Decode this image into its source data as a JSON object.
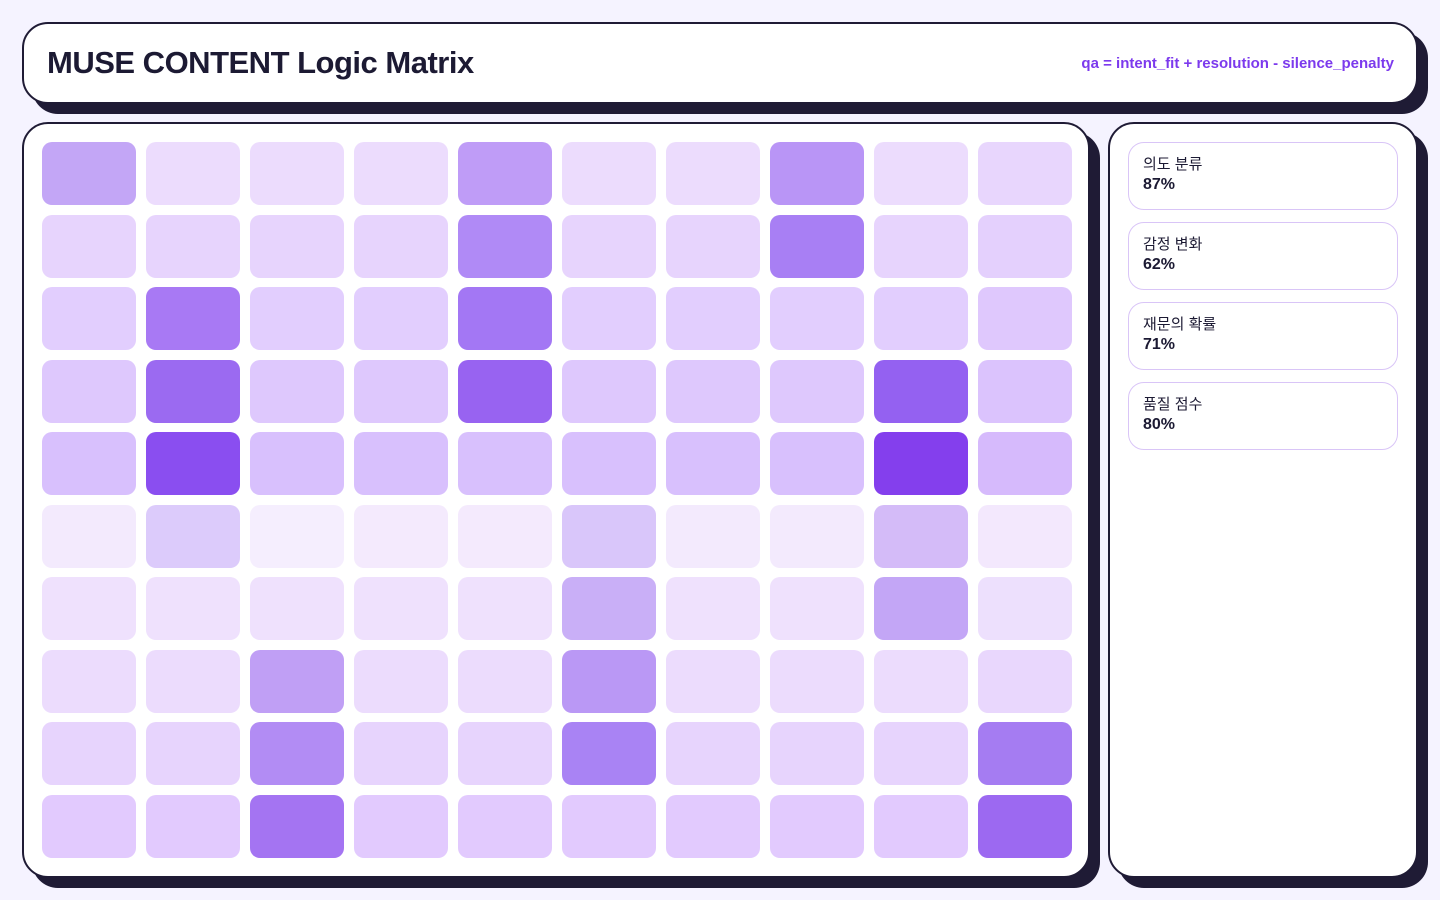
{
  "header": {
    "title": "MUSE CONTENT Logic Matrix",
    "formula": "qa = intent_fit + resolution - silence_penalty"
  },
  "matrix": {
    "colors": [
      [
        "#c3a6f6",
        "#ecdcfd",
        "#ecdcfd",
        "#ecdcfd",
        "#bf9cf7",
        "#ecdcfd",
        "#ecdcfd",
        "#b995f6",
        "#ecdcfd",
        "#e8d6fd"
      ],
      [
        "#e7d4fd",
        "#e7d4fd",
        "#e7d4fd",
        "#e7d4fd",
        "#b08af6",
        "#e7d4fd",
        "#e7d4fd",
        "#a87ff4",
        "#e7d4fd",
        "#e4d0fd"
      ],
      [
        "#e2cefe",
        "#a879f4",
        "#e2cefe",
        "#e2cefe",
        "#a377f4",
        "#e2cefe",
        "#e2cefe",
        "#e2cefe",
        "#e2cefe",
        "#dfc8fd"
      ],
      [
        "#dec8fd",
        "#9b6af1",
        "#dec8fd",
        "#dec8fd",
        "#9863f1",
        "#dec8fd",
        "#dec8fd",
        "#dec8fd",
        "#9461f1",
        "#dbc3fd"
      ],
      [
        "#d8c0fd",
        "#8a4ef0",
        "#d8c0fd",
        "#d8c0fd",
        "#d8c0fd",
        "#d8c0fd",
        "#d8c0fd",
        "#d8c0fd",
        "#843fed",
        "#d6bafc"
      ],
      [
        "#f3eafd",
        "#dccbfb",
        "#f5eefe",
        "#f4eafd",
        "#f4eafd",
        "#d9c6fa",
        "#f3eafd",
        "#f3eafd",
        "#d4bbf8",
        "#f3e8fd"
      ],
      [
        "#efe1fd",
        "#efe1fd",
        "#efe1fd",
        "#efe1fd",
        "#efe1fd",
        "#c9aff7",
        "#efe1fd",
        "#efe1fd",
        "#c3a6f6",
        "#ede0fd"
      ],
      [
        "#ecdcfd",
        "#ecdcfd",
        "#c09ff5",
        "#ecdcfd",
        "#ecdcfd",
        "#ba98f5",
        "#ecdcfd",
        "#ecdcfd",
        "#ecdcfd",
        "#e9d7fd"
      ],
      [
        "#e7d4fd",
        "#e7d4fd",
        "#b28cf4",
        "#e7d4fd",
        "#e7d4fd",
        "#a983f4",
        "#e7d4fd",
        "#e7d4fd",
        "#e7d4fd",
        "#a57cf2"
      ],
      [
        "#e2cafe",
        "#e2cafe",
        "#a474f2",
        "#e2cafe",
        "#e2cafe",
        "#e2cafe",
        "#e2cafe",
        "#e2cafe",
        "#e2cafe",
        "#9c69f1"
      ]
    ]
  },
  "metrics": [
    {
      "label": "의도 분류",
      "value": "87%"
    },
    {
      "label": "감정 변화",
      "value": "62%"
    },
    {
      "label": "재문의 확률",
      "value": "71%"
    },
    {
      "label": "품질 점수",
      "value": "80%"
    }
  ]
}
